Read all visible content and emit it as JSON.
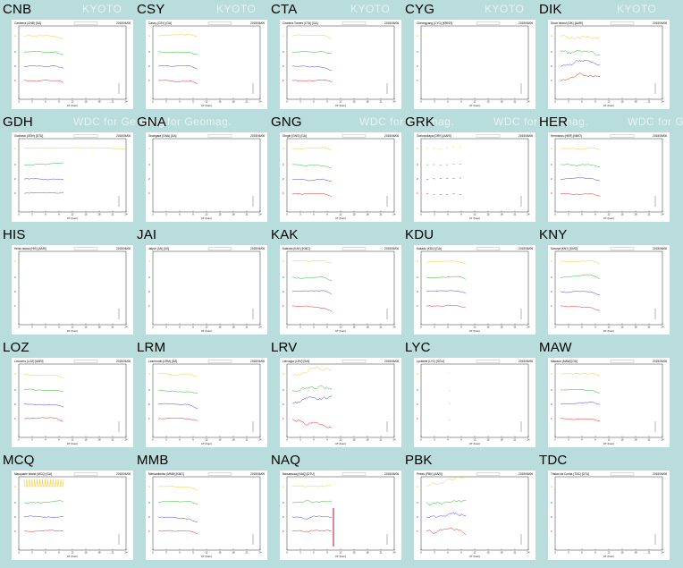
{
  "watermark": {
    "row0": "KYOTO",
    "row1": "WDC for Geomag.",
    "row1_alt": "for Geomag."
  },
  "date": "2015/06/06",
  "axis_label": "UT (hour)",
  "components": [
    "H",
    "D",
    "Z",
    "F"
  ],
  "colors": {
    "H": "#f5c000",
    "D": "#00b000",
    "Z": "#2020e0",
    "F": "#e00000",
    "bg": "#b9dcdc"
  },
  "stations": [
    {
      "code": "CNB",
      "title": "Canberra (CNB) [GA]",
      "mode": "normal"
    },
    {
      "code": "CSY",
      "title": "Casey (CSY) [GA]",
      "mode": "normal"
    },
    {
      "code": "CTA",
      "title": "Charters Towers (CTA) [GA]",
      "mode": "normal"
    },
    {
      "code": "CYG",
      "title": "Cheongyang (CYG) [KRISS]",
      "mode": "empty"
    },
    {
      "code": "DIK",
      "title": "Dixon Island (DIK) [AARI]",
      "mode": "disturbed"
    },
    {
      "code": "GDH",
      "title": "Godhavn (GDH) [DTU]",
      "mode": "flatH"
    },
    {
      "code": "GNA",
      "title": "Gnangara (GNA) [GA]",
      "mode": "empty"
    },
    {
      "code": "GNG",
      "title": "Gingin (GNG) [GA]",
      "mode": "normal"
    },
    {
      "code": "GRK",
      "title": "Gorkovskaya (GRK) [AARI]",
      "mode": "sparse"
    },
    {
      "code": "HER",
      "title": "Hermanus (HER) [NMO]",
      "mode": "normal"
    },
    {
      "code": "HIS",
      "title": "Heiss Island (HIS) [AARI]",
      "mode": "empty"
    },
    {
      "code": "JAI",
      "title": "Jaipur (JAI) [IIG]",
      "mode": "empty"
    },
    {
      "code": "KAK",
      "title": "Kakioka (KAK) [KMO]",
      "mode": "normal"
    },
    {
      "code": "KDU",
      "title": "Kakadu (KDU) [GA]",
      "mode": "normal"
    },
    {
      "code": "KNY",
      "title": "Kanoya (KNY) [KMO]",
      "mode": "normal"
    },
    {
      "code": "LOZ",
      "title": "Lovozero (LOZ) [AARI]",
      "mode": "normal"
    },
    {
      "code": "LRM",
      "title": "Learmonth (LRM) [GA]",
      "mode": "normal"
    },
    {
      "code": "LRV",
      "title": "Leirvogur (LRV) [SAI]",
      "mode": "disturbed"
    },
    {
      "code": "LYC",
      "title": "Lycksele (LYC) [SGU]",
      "mode": "tiny"
    },
    {
      "code": "MAW",
      "title": "Mawson (MAW) [GA]",
      "mode": "normal"
    },
    {
      "code": "MCQ",
      "title": "Macquarie Island (MCQ) [GA]",
      "mode": "spiky"
    },
    {
      "code": "MMB",
      "title": "Memambetsu (MMB) [KMO]",
      "mode": "normal"
    },
    {
      "code": "NAQ",
      "title": "Narsarsuaq (NAQ) [DTU]",
      "mode": "storm"
    },
    {
      "code": "PBK",
      "title": "Pebek (PBK) [AARI]",
      "mode": "disturbed"
    },
    {
      "code": "TDC",
      "title": "Tristan da Cunha (TDC) [DTU]",
      "mode": "empty"
    }
  ]
}
